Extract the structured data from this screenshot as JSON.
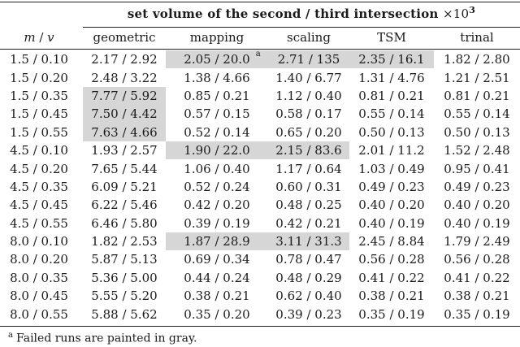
{
  "table": {
    "header_title": "set volume of the second / third intersection",
    "header_scale_base": "×10",
    "header_scale_exp": "3",
    "row_header": {
      "m": "m",
      "sep": " / ",
      "v": "v"
    },
    "columns": [
      "geometric",
      "mapping",
      "scaling",
      "TSM",
      "trinal"
    ],
    "rows": [
      {
        "mv": "1.5 / 0.10",
        "cells": [
          "2.17 / 2.92",
          "2.05 / 20.0",
          "2.71 / 135",
          "2.35 / 16.1",
          "1.82 / 2.80"
        ],
        "failed": [
          false,
          true,
          true,
          true,
          false
        ]
      },
      {
        "mv": "1.5 / 0.20",
        "cells": [
          "2.48 / 3.22",
          "1.38 / 4.66",
          "1.40 / 6.77",
          "1.31 / 4.76",
          "1.21 / 2.51"
        ],
        "failed": [
          false,
          false,
          false,
          false,
          false
        ]
      },
      {
        "mv": "1.5 / 0.35",
        "cells": [
          "7.77 / 5.92",
          "0.85 / 0.21",
          "1.12 / 0.40",
          "0.81 / 0.21",
          "0.81 / 0.21"
        ],
        "failed": [
          true,
          false,
          false,
          false,
          false
        ]
      },
      {
        "mv": "1.5 / 0.45",
        "cells": [
          "7.50 / 4.42",
          "0.57 / 0.15",
          "0.58 / 0.17",
          "0.55 / 0.14",
          "0.55 / 0.14"
        ],
        "failed": [
          true,
          false,
          false,
          false,
          false
        ]
      },
      {
        "mv": "1.5 / 0.55",
        "cells": [
          "7.63 / 4.66",
          "0.52 / 0.14",
          "0.65 / 0.20",
          "0.50 / 0.13",
          "0.50 / 0.13"
        ],
        "failed": [
          true,
          false,
          false,
          false,
          false
        ]
      },
      {
        "mv": "4.5 / 0.10",
        "cells": [
          "1.93 / 2.57",
          "1.90 / 22.0",
          "2.15 / 83.6",
          "2.01 / 11.2",
          "1.52 / 2.48"
        ],
        "failed": [
          false,
          true,
          true,
          false,
          false
        ]
      },
      {
        "mv": "4.5 / 0.20",
        "cells": [
          "7.65 / 5.44",
          "1.06 / 0.40",
          "1.17 / 0.64",
          "1.03 / 0.49",
          "0.95 / 0.41"
        ],
        "failed": [
          false,
          false,
          false,
          false,
          false
        ]
      },
      {
        "mv": "4.5 / 0.35",
        "cells": [
          "6.09 / 5.21",
          "0.52 / 0.24",
          "0.60 / 0.31",
          "0.49 / 0.23",
          "0.49 / 0.23"
        ],
        "failed": [
          false,
          false,
          false,
          false,
          false
        ]
      },
      {
        "mv": "4.5 / 0.45",
        "cells": [
          "6.22 / 5.46",
          "0.42 / 0.20",
          "0.48 / 0.25",
          "0.40 / 0.20",
          "0.40 / 0.20"
        ],
        "failed": [
          false,
          false,
          false,
          false,
          false
        ]
      },
      {
        "mv": "4.5 / 0.55",
        "cells": [
          "6.46 / 5.80",
          "0.39 / 0.19",
          "0.42 / 0.21",
          "0.40 / 0.19",
          "0.40 / 0.19"
        ],
        "failed": [
          false,
          false,
          false,
          false,
          false
        ]
      },
      {
        "mv": "8.0 / 0.10",
        "cells": [
          "1.82 / 2.53",
          "1.87 / 28.9",
          "3.11 / 31.3",
          "2.45 / 8.84",
          "1.79 / 2.49"
        ],
        "failed": [
          false,
          true,
          true,
          false,
          false
        ]
      },
      {
        "mv": "8.0 / 0.20",
        "cells": [
          "5.87 / 5.13",
          "0.69 / 0.34",
          "0.78 / 0.47",
          "0.56 / 0.28",
          "0.56 / 0.28"
        ],
        "failed": [
          false,
          false,
          false,
          false,
          false
        ]
      },
      {
        "mv": "8.0 / 0.35",
        "cells": [
          "5.36 / 5.00",
          "0.44 / 0.24",
          "0.48 / 0.29",
          "0.41 / 0.22",
          "0.41 / 0.22"
        ],
        "failed": [
          false,
          false,
          false,
          false,
          false
        ]
      },
      {
        "mv": "8.0 / 0.45",
        "cells": [
          "5.55 / 5.20",
          "0.38 / 0.21",
          "0.62 / 0.40",
          "0.38 / 0.21",
          "0.38 / 0.21"
        ],
        "failed": [
          false,
          false,
          false,
          false,
          false
        ]
      },
      {
        "mv": "8.0 / 0.55",
        "cells": [
          "5.88 / 5.62",
          "0.35 / 0.20",
          "0.39 / 0.23",
          "0.35 / 0.19",
          "0.35 / 0.19"
        ],
        "failed": [
          false,
          false,
          false,
          false,
          false
        ]
      }
    ],
    "footnote_marker": "a",
    "footnote_text": "Failed runs are painted in gray.",
    "failed_color": "#d6d6d6"
  }
}
